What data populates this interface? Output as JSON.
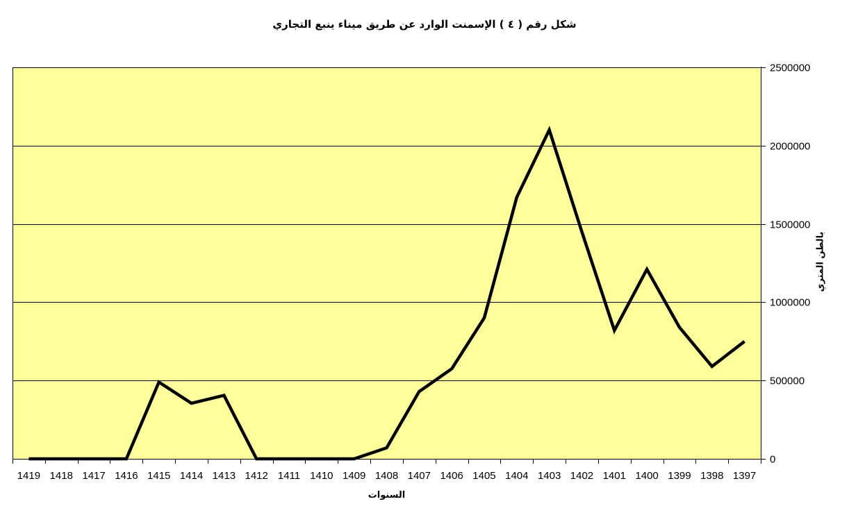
{
  "title": "شكل رقم ( ٤ )  الإسمنت الوارد عن طريق ميناء ينبع التجاري",
  "chart_data": {
    "type": "line",
    "title": "شكل رقم ( ٤ )  الإسمنت الوارد عن طريق ميناء ينبع التجاري",
    "xlabel": "السنوات",
    "ylabel": "بالطن المتري",
    "categories": [
      "1419",
      "1418",
      "1417",
      "1416",
      "1415",
      "1414",
      "1413",
      "1412",
      "1411",
      "1410",
      "1409",
      "1408",
      "1407",
      "1406",
      "1405",
      "1404",
      "1403",
      "1402",
      "1401",
      "1400",
      "1399",
      "1398",
      "1397"
    ],
    "values": [
      0,
      0,
      0,
      0,
      490000,
      355000,
      405000,
      0,
      0,
      0,
      0,
      70000,
      430000,
      575000,
      900000,
      1670000,
      2100000,
      1450000,
      820000,
      1210000,
      840000,
      590000,
      750000
    ],
    "yticks": [
      0,
      500000,
      1000000,
      1500000,
      2000000,
      2500000
    ],
    "ytick_labels": [
      "0",
      "500000",
      "1000000",
      "1500000",
      "2000000",
      "2500000"
    ],
    "ylim": [
      0,
      2500000
    ],
    "y_axis_side": "right",
    "grid": "horizontal",
    "legend": "none",
    "colors": {
      "plot_background": "#FFFF99",
      "page_background": "#FFFFFF",
      "line": "#000000",
      "axis": "#000000",
      "gridline": "#000000",
      "label_text": "#000000"
    }
  }
}
